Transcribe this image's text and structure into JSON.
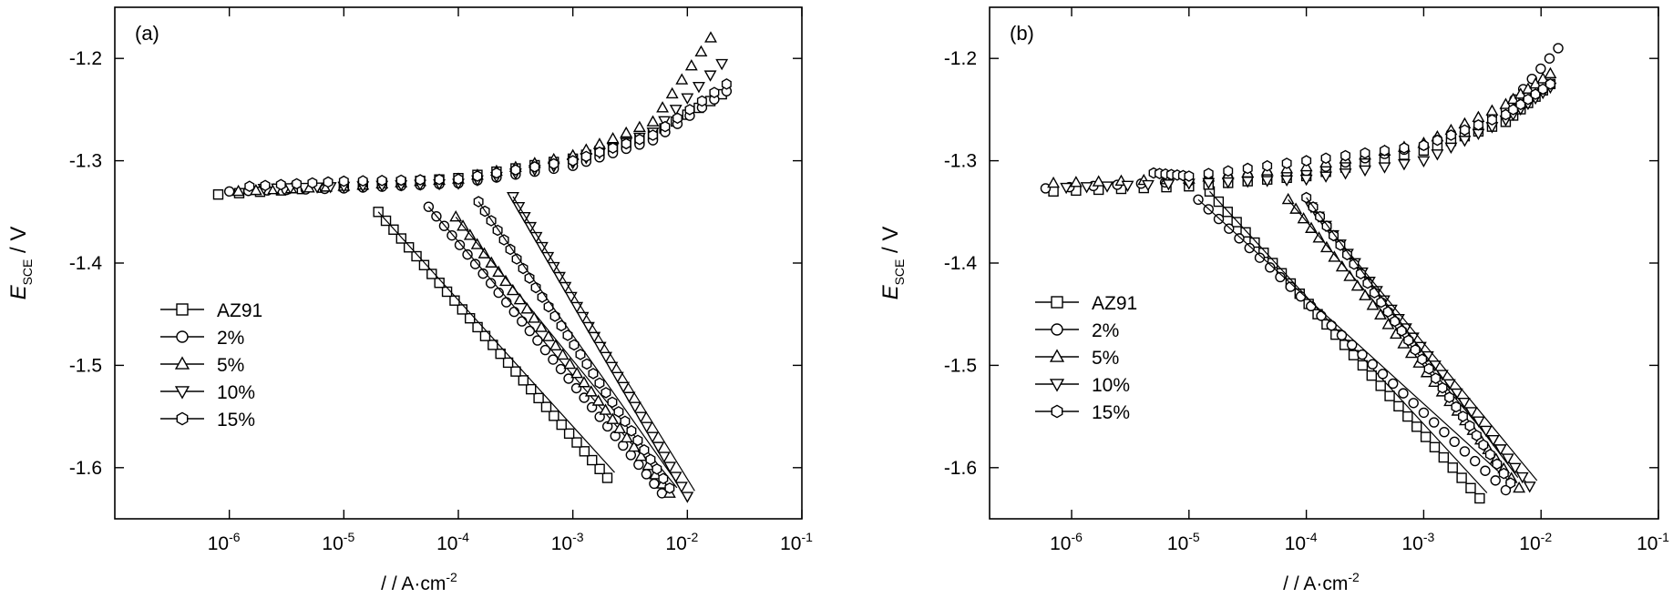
{
  "chart_data": [
    {
      "type": "scatter",
      "panel_label": "(a)",
      "xlabel_prefix": "/ / A·cm",
      "xlabel_sup": "-2",
      "ylabel_main": "E",
      "ylabel_sub": "SCE",
      "ylabel_unit": " / V",
      "x_log": true,
      "xlim": [
        1e-07,
        0.1
      ],
      "ylim": [
        -1.65,
        -1.15
      ],
      "x_ticks": [
        {
          "value": 1e-06,
          "base": "10",
          "exp": "-6"
        },
        {
          "value": 1e-05,
          "base": "10",
          "exp": "-5"
        },
        {
          "value": 0.0001,
          "base": "10",
          "exp": "-4"
        },
        {
          "value": 0.001,
          "base": "10",
          "exp": "-3"
        },
        {
          "value": 0.01,
          "base": "10",
          "exp": "-2"
        },
        {
          "value": 0.1,
          "base": "10",
          "exp": "-1"
        }
      ],
      "y_ticks": [
        {
          "value": -1.2,
          "label": "-1.2"
        },
        {
          "value": -1.3,
          "label": "-1.3"
        },
        {
          "value": -1.4,
          "label": "-1.4"
        },
        {
          "value": -1.5,
          "label": "-1.5"
        },
        {
          "value": -1.6,
          "label": "-1.6"
        }
      ],
      "legend_position": "center-left",
      "series": [
        {
          "name": "AZ91",
          "marker": "square",
          "cathodic": {
            "x": [
              0.002,
              2e-05
            ],
            "y": [
              -1.61,
              -1.35
            ]
          },
          "anodic": {
            "x": [
              8e-07,
              1e-05,
              0.0001,
              0.001,
              0.005,
              0.02
            ],
            "y": [
              -1.333,
              -1.325,
              -1.317,
              -1.298,
              -1.275,
              -1.235
            ]
          }
        },
        {
          "name": "2%",
          "marker": "circle",
          "cathodic": {
            "x": [
              0.006,
              5.5e-05
            ],
            "y": [
              -1.625,
              -1.345
            ]
          },
          "anodic": {
            "x": [
              1e-06,
              1e-05,
              0.0001,
              0.001,
              0.005,
              0.022
            ],
            "y": [
              -1.33,
              -1.327,
              -1.322,
              -1.305,
              -1.28,
              -1.232
            ]
          }
        },
        {
          "name": "5%",
          "marker": "triangle-up",
          "cathodic": {
            "x": [
              0.007,
              9.5e-05
            ],
            "y": [
              -1.625,
              -1.355
            ]
          },
          "anodic": {
            "x": [
              1.2e-06,
              1e-05,
              0.0001,
              0.001,
              0.005,
              0.016
            ],
            "y": [
              -1.33,
              -1.325,
              -1.318,
              -1.295,
              -1.262,
              -1.18
            ]
          }
        },
        {
          "name": "10%",
          "marker": "triangle-down",
          "cathodic": {
            "x": [
              0.01,
              0.0003
            ],
            "y": [
              -1.628,
              -1.335
            ]
          },
          "anodic": {
            "x": [
              2e-06,
              1e-05,
              0.0001,
              0.001,
              0.005,
              0.02
            ],
            "y": [
              -1.327,
              -1.325,
              -1.322,
              -1.302,
              -1.272,
              -1.205
            ]
          }
        },
        {
          "name": "15%",
          "marker": "hexagon",
          "cathodic": {
            "x": [
              0.007,
              0.00015
            ],
            "y": [
              -1.62,
              -1.34
            ]
          },
          "anodic": {
            "x": [
              1.5e-06,
              1e-05,
              0.0001,
              0.001,
              0.005,
              0.022
            ],
            "y": [
              -1.325,
              -1.32,
              -1.318,
              -1.3,
              -1.275,
              -1.225
            ]
          }
        }
      ]
    },
    {
      "type": "scatter",
      "panel_label": "(b)",
      "xlabel_prefix": "/ / A·cm",
      "xlabel_sup": "-2",
      "ylabel_main": "E",
      "ylabel_sub": "SCE",
      "ylabel_unit": " / V",
      "x_log": true,
      "xlim": [
        2e-07,
        0.1
      ],
      "ylim": [
        -1.65,
        -1.15
      ],
      "x_ticks": [
        {
          "value": 1e-06,
          "base": "10",
          "exp": "-6"
        },
        {
          "value": 1e-05,
          "base": "10",
          "exp": "-5"
        },
        {
          "value": 0.0001,
          "base": "10",
          "exp": "-4"
        },
        {
          "value": 0.001,
          "base": "10",
          "exp": "-3"
        },
        {
          "value": 0.01,
          "base": "10",
          "exp": "-2"
        },
        {
          "value": 0.1,
          "base": "10",
          "exp": "-1"
        }
      ],
      "y_ticks": [
        {
          "value": -1.2,
          "label": "-1.2"
        },
        {
          "value": -1.3,
          "label": "-1.3"
        },
        {
          "value": -1.4,
          "label": "-1.4"
        },
        {
          "value": -1.5,
          "label": "-1.5"
        },
        {
          "value": -1.6,
          "label": "-1.6"
        }
      ],
      "legend_position": "center-left",
      "series": [
        {
          "name": "AZ91",
          "marker": "square",
          "cathodic": {
            "x": [
              0.003,
              1.5e-05
            ],
            "y": [
              -1.63,
              -1.33
            ]
          },
          "anodic": {
            "x": [
              7e-07,
              1e-05,
              0.0001,
              0.001,
              0.005,
              0.012
            ],
            "y": [
              -1.33,
              -1.325,
              -1.315,
              -1.29,
              -1.262,
              -1.225
            ]
          }
        },
        {
          "name": "2%",
          "marker": "circle",
          "cathodic": {
            "x": [
              0.005,
              1.2e-05
            ],
            "y": [
              -1.622,
              -1.338
            ]
          },
          "anodic": {
            "x": [
              6e-07,
              1e-05,
              0.0001,
              0.001,
              0.005,
              0.014
            ],
            "y": [
              -1.327,
              -1.32,
              -1.31,
              -1.285,
              -1.25,
              -1.19
            ]
          }
        },
        {
          "name": "5%",
          "marker": "triangle-up",
          "cathodic": {
            "x": [
              0.0065,
              7e-05
            ],
            "y": [
              -1.62,
              -1.338
            ]
          },
          "anodic": {
            "x": [
              7e-07,
              1e-05,
              0.0001,
              0.001,
              0.005,
              0.012
            ],
            "y": [
              -1.322,
              -1.318,
              -1.306,
              -1.283,
              -1.245,
              -1.215
            ]
          }
        },
        {
          "name": "10%",
          "marker": "triangle-down",
          "cathodic": {
            "x": [
              0.008,
              0.00011
            ],
            "y": [
              -1.618,
              -1.345
            ]
          },
          "anodic": {
            "x": [
              9e-07,
              1e-05,
              0.0001,
              0.001,
              0.005,
              0.012
            ],
            "y": [
              -1.326,
              -1.322,
              -1.318,
              -1.3,
              -1.26,
              -1.228
            ]
          }
        },
        {
          "name": "15%",
          "marker": "hexagon",
          "cathodic": {
            "x": [
              0.0055,
              0.0001
            ],
            "y": [
              -1.615,
              -1.336
            ]
          },
          "anodic": {
            "x": [
              5e-06,
              1e-05,
              0.0001,
              0.001,
              0.005,
              0.012
            ],
            "y": [
              -1.312,
              -1.315,
              -1.3,
              -1.285,
              -1.255,
              -1.225
            ]
          }
        }
      ]
    }
  ]
}
